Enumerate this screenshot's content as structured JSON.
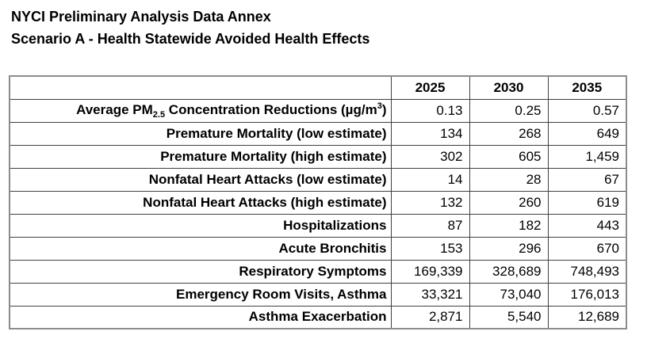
{
  "document": {
    "title_line1": "NYCI Preliminary Analysis Data Annex",
    "title_line2": "Scenario A - Health Statewide Avoided Health Effects"
  },
  "table": {
    "year_headers": [
      "2025",
      "2030",
      "2035"
    ],
    "rows": [
      {
        "label_parts": {
          "pre": "Average PM",
          "sub": "2.5",
          "mid": " Concentration Reductions (µg/m",
          "sup": "3",
          "post": ")"
        },
        "values": [
          "0.13",
          "0.25",
          "0.57"
        ]
      },
      {
        "label": "Premature Mortality (low estimate)",
        "values": [
          "134",
          "268",
          "649"
        ]
      },
      {
        "label": "Premature Mortality (high estimate)",
        "values": [
          "302",
          "605",
          "1,459"
        ]
      },
      {
        "label": "Nonfatal Heart Attacks (low estimate)",
        "values": [
          "14",
          "28",
          "67"
        ]
      },
      {
        "label": "Nonfatal Heart Attacks (high estimate)",
        "values": [
          "132",
          "260",
          "619"
        ]
      },
      {
        "label": "Hospitalizations",
        "values": [
          "87",
          "182",
          "443"
        ]
      },
      {
        "label": "Acute Bronchitis",
        "values": [
          "153",
          "296",
          "670"
        ]
      },
      {
        "label": "Respiratory Symptoms",
        "values": [
          "169,339",
          "328,689",
          "748,493"
        ]
      },
      {
        "label": "Emergency Room Visits, Asthma",
        "values": [
          "33,321",
          "73,040",
          "176,013"
        ]
      },
      {
        "label": "Asthma Exacerbation",
        "values": [
          "2,871",
          "5,540",
          "12,689"
        ]
      }
    ]
  }
}
